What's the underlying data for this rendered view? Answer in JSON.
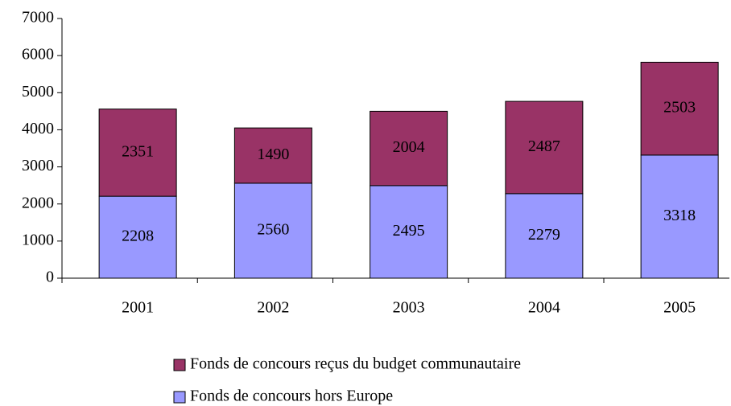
{
  "chart_data": {
    "type": "stacked_bar",
    "categories": [
      "2001",
      "2002",
      "2003",
      "2004",
      "2005"
    ],
    "series": [
      {
        "name": "Fonds de concours hors Europe",
        "color": "#9999ff",
        "values": [
          2208,
          2560,
          2495,
          2279,
          3318
        ]
      },
      {
        "name": "Fonds de concours reçus du budget communautaire",
        "color": "#993366",
        "values": [
          2351,
          1490,
          2004,
          2487,
          2503
        ]
      }
    ],
    "ylim": [
      0,
      7000
    ],
    "yticks": [
      0,
      1000,
      2000,
      3000,
      4000,
      5000,
      6000,
      7000
    ],
    "legend": "bottom"
  }
}
